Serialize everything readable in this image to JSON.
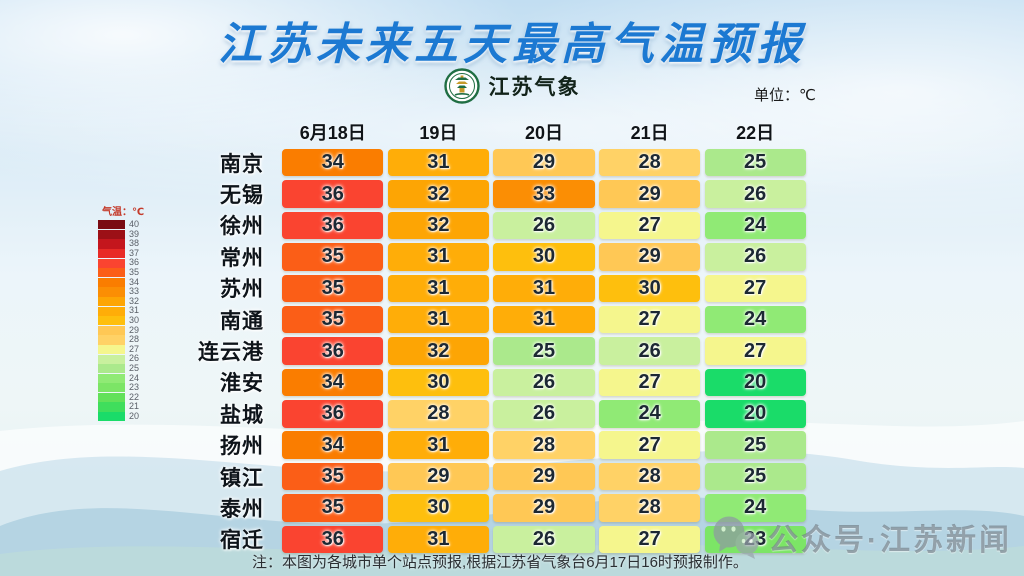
{
  "title": "江苏未来五天最高气温预报",
  "title_color": "#1c79d2",
  "logo": {
    "name": "江苏气象"
  },
  "unit_label": "单位：℃",
  "legend": {
    "title": "气温：℃",
    "values": [
      40,
      39,
      38,
      37,
      36,
      35,
      34,
      33,
      32,
      31,
      30,
      29,
      28,
      27,
      26,
      25,
      24,
      23,
      22,
      21,
      20
    ]
  },
  "table": {
    "columns": [
      "6月18日",
      "19日",
      "20日",
      "21日",
      "22日"
    ],
    "rows": [
      {
        "city": "南京",
        "temps": [
          34,
          31,
          29,
          28,
          25
        ]
      },
      {
        "city": "无锡",
        "temps": [
          36,
          32,
          33,
          29,
          26
        ]
      },
      {
        "city": "徐州",
        "temps": [
          36,
          32,
          26,
          27,
          24
        ]
      },
      {
        "city": "常州",
        "temps": [
          35,
          31,
          30,
          29,
          26
        ]
      },
      {
        "city": "苏州",
        "temps": [
          35,
          31,
          31,
          30,
          27
        ]
      },
      {
        "city": "南通",
        "temps": [
          35,
          31,
          31,
          27,
          24
        ]
      },
      {
        "city": "连云港",
        "temps": [
          36,
          32,
          25,
          26,
          27
        ]
      },
      {
        "city": "淮安",
        "temps": [
          34,
          30,
          26,
          27,
          20
        ]
      },
      {
        "city": "盐城",
        "temps": [
          36,
          28,
          26,
          24,
          20
        ]
      },
      {
        "city": "扬州",
        "temps": [
          34,
          31,
          28,
          27,
          25
        ]
      },
      {
        "city": "镇江",
        "temps": [
          35,
          29,
          29,
          28,
          25
        ]
      },
      {
        "city": "泰州",
        "temps": [
          35,
          30,
          29,
          28,
          24
        ]
      },
      {
        "city": "宿迁",
        "temps": [
          36,
          31,
          26,
          27,
          23
        ]
      }
    ]
  },
  "temperature_colors": {
    "40": "#7a0b12",
    "39": "#9c1016",
    "38": "#c4161d",
    "37": "#e82a26",
    "36": "#fa4430",
    "35": "#fb5e17",
    "34": "#fa7d00",
    "33": "#fb8e04",
    "32": "#fda504",
    "31": "#ffad08",
    "30": "#febf0d",
    "29": "#ffc855",
    "28": "#ffd266",
    "27": "#f5f68d",
    "26": "#c9f09e",
    "25": "#abe98c",
    "24": "#90ea75",
    "23": "#7ce566",
    "22": "#62e159",
    "21": "#3fde5c",
    "20": "#1adc69"
  },
  "note": "注：本图为各城市单个站点预报,根据江苏省气象台6月17日16时预报制作。",
  "watermark": {
    "icon": "wechat-icon",
    "text": "公众号·江苏新闻"
  },
  "chart_data": {
    "type": "heatmap",
    "title": "江苏未来五天最高气温预报",
    "unit": "℃",
    "x": [
      "6月18日",
      "19日",
      "20日",
      "21日",
      "22日"
    ],
    "categories": [
      "南京",
      "无锡",
      "徐州",
      "常州",
      "苏州",
      "南通",
      "连云港",
      "淮安",
      "盐城",
      "扬州",
      "镇江",
      "泰州",
      "宿迁"
    ],
    "series": [
      {
        "name": "南京",
        "values": [
          34,
          31,
          29,
          28,
          25
        ]
      },
      {
        "name": "无锡",
        "values": [
          36,
          32,
          33,
          29,
          26
        ]
      },
      {
        "name": "徐州",
        "values": [
          36,
          32,
          26,
          27,
          24
        ]
      },
      {
        "name": "常州",
        "values": [
          35,
          31,
          30,
          29,
          26
        ]
      },
      {
        "name": "苏州",
        "values": [
          35,
          31,
          31,
          30,
          27
        ]
      },
      {
        "name": "南通",
        "values": [
          35,
          31,
          31,
          27,
          24
        ]
      },
      {
        "name": "连云港",
        "values": [
          36,
          32,
          25,
          26,
          27
        ]
      },
      {
        "name": "淮安",
        "values": [
          34,
          30,
          26,
          27,
          20
        ]
      },
      {
        "name": "盐城",
        "values": [
          36,
          28,
          26,
          24,
          20
        ]
      },
      {
        "name": "扬州",
        "values": [
          34,
          31,
          28,
          27,
          25
        ]
      },
      {
        "name": "镇江",
        "values": [
          35,
          29,
          29,
          28,
          25
        ]
      },
      {
        "name": "泰州",
        "values": [
          35,
          30,
          29,
          28,
          24
        ]
      },
      {
        "name": "宿迁",
        "values": [
          36,
          31,
          26,
          27,
          23
        ]
      }
    ],
    "colorbar": {
      "label": "气温：℃",
      "range": [
        20,
        40
      ],
      "orientation": "vertical"
    },
    "source_note": "注：本图为各城市单个站点预报,根据江苏省气象台6月17日16时预报制作。"
  }
}
